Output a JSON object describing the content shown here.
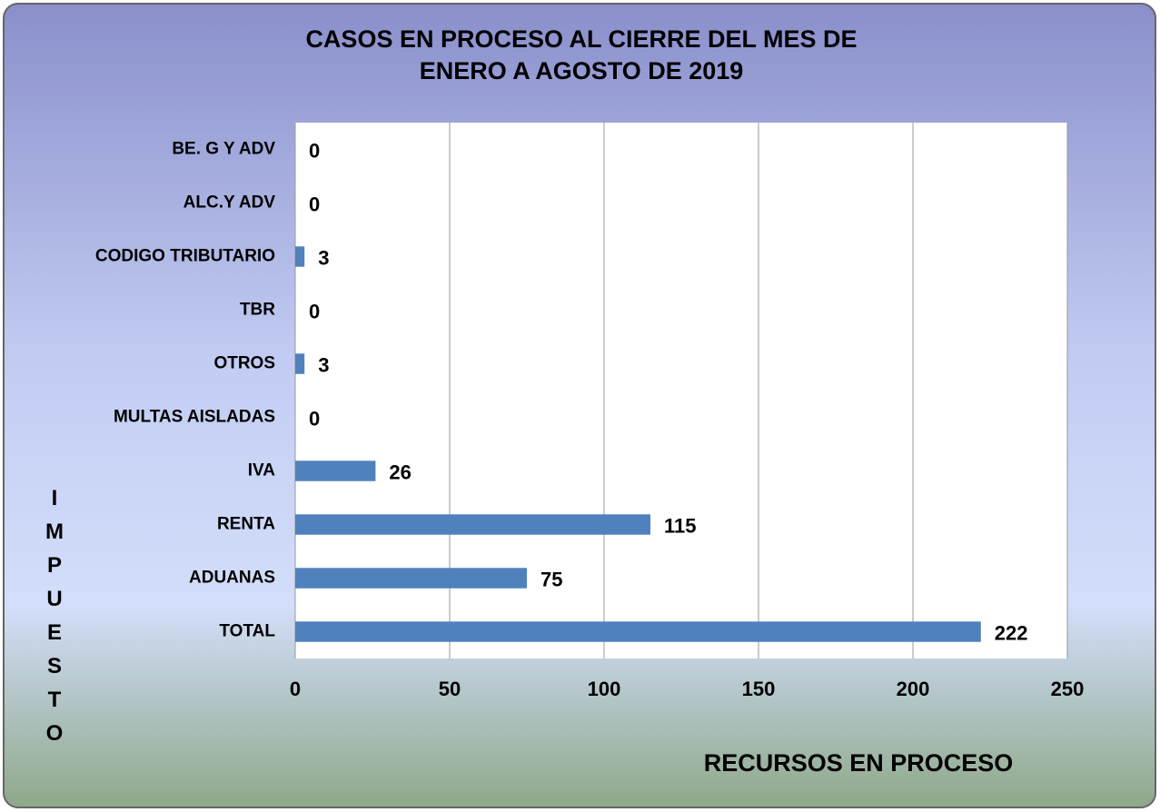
{
  "chart_data": {
    "type": "hbar",
    "title": [
      "CASOS EN PROCESO AL CIERRE DEL MES DE",
      "ENERO  A AGOSTO DE 2019"
    ],
    "x_label": "RECURSOS EN PROCESO",
    "y_label": "IMPUESTO",
    "categories": [
      "BE. G Y ADV",
      "ALC.Y ADV",
      "CODIGO TRIBUTARIO",
      "TBR",
      "OTROS",
      "MULTAS AISLADAS",
      "IVA",
      "RENTA",
      "ADUANAS",
      "TOTAL"
    ],
    "values": [
      0,
      0,
      3,
      0,
      3,
      0,
      26,
      115,
      75,
      222
    ],
    "color": "#4f81bd",
    "xlim": [
      0,
      250
    ],
    "xticks": [
      0,
      50,
      100,
      150,
      200,
      250
    ],
    "grid": true
  }
}
